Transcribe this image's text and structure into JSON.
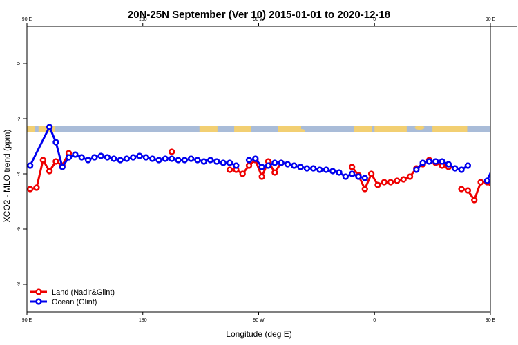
{
  "colors": {
    "land": "#ee0000",
    "ocean": "#0000ee",
    "map_band": "#a9bcd8",
    "continent": "#f2cf72"
  },
  "chart_data": {
    "type": "line",
    "title": "20N-25N September (Ver 10)   2015-01-01 to 2020-12-18",
    "xlabel": "Longitude (deg E)",
    "ylabel": "XCO2 - MLO trend (ppm)",
    "xlim": [
      90,
      450
    ],
    "ylim": [
      -9.0,
      1.35
    ],
    "x_ticks": [
      {
        "value": 90,
        "label": "90 E"
      },
      {
        "value": 180,
        "label": "180"
      },
      {
        "value": 270,
        "label": "90 W"
      },
      {
        "value": 360,
        "label": "0"
      },
      {
        "value": 450,
        "label": "90 E"
      }
    ],
    "x_ticks_top": [
      {
        "value": 90,
        "label": "90 E"
      },
      {
        "value": 180,
        "label": "180"
      },
      {
        "value": 270,
        "label": "90 W"
      },
      {
        "value": 360,
        "label": "0"
      },
      {
        "value": 450,
        "label": "90 E"
      },
      {
        "value": 540,
        "label": "180"
      }
    ],
    "y_ticks": [
      0,
      -2,
      -4,
      -6,
      -8
    ],
    "map_band": {
      "y_top": -2.25,
      "y_bottom": -2.5
    },
    "legend": {
      "position": "bottom-left",
      "entries": [
        "Land (Nadir&Glint)",
        "Ocean (Glint)"
      ]
    },
    "series": [
      {
        "name": "Land (Nadir&Glint)",
        "color": "#ee0000",
        "segments": [
          [
            [
              92.5,
              -4.55
            ],
            [
              97.5,
              -4.5
            ],
            [
              102.5,
              -3.5
            ],
            [
              107.5,
              -3.9
            ],
            [
              112.5,
              -3.55
            ],
            [
              117.5,
              -3.7
            ],
            [
              122.5,
              -3.25
            ]
          ],
          [
            [
              202.5,
              -3.2
            ]
          ],
          [
            [
              247.5,
              -3.85
            ],
            [
              252.5,
              -3.85
            ],
            [
              257.5,
              -4.0
            ],
            [
              262.5,
              -3.7
            ],
            [
              267.5,
              -3.5
            ],
            [
              272.5,
              -4.1
            ],
            [
              277.5,
              -3.55
            ],
            [
              282.5,
              -3.95
            ],
            [
              287.5,
              -3.6
            ]
          ],
          [
            [
              342.5,
              -3.75
            ],
            [
              347.5,
              -4.05
            ],
            [
              352.5,
              -4.55
            ],
            [
              357.5,
              -4.0
            ],
            [
              362.5,
              -4.4
            ],
            [
              367.5,
              -4.3
            ],
            [
              372.5,
              -4.3
            ],
            [
              377.5,
              -4.25
            ],
            [
              382.5,
              -4.2
            ],
            [
              387.5,
              -4.1
            ],
            [
              392.5,
              -3.8
            ],
            [
              397.5,
              -3.65
            ],
            [
              402.5,
              -3.5
            ],
            [
              407.5,
              -3.6
            ],
            [
              412.5,
              -3.7
            ],
            [
              417.5,
              -3.75
            ]
          ],
          [
            [
              427.5,
              -4.55
            ],
            [
              432.5,
              -4.6
            ],
            [
              437.5,
              -4.95
            ],
            [
              442.5,
              -4.3
            ],
            [
              447.5,
              -4.3
            ],
            [
              452.5,
              -4.55
            ],
            [
              457.5,
              -4.5
            ],
            [
              462.5,
              -3.5
            ],
            [
              467.5,
              -3.9
            ],
            [
              472.5,
              -3.55
            ],
            [
              477.5,
              -3.65
            ],
            [
              482.5,
              -3.25
            ]
          ]
        ]
      },
      {
        "name": "Ocean (Glint)",
        "color": "#0000ee",
        "segments": [
          [
            [
              92.5,
              -3.7
            ],
            [
              107.5,
              -2.3
            ],
            [
              112.5,
              -2.85
            ],
            [
              117.5,
              -3.75
            ],
            [
              122.5,
              -3.4
            ],
            [
              127.5,
              -3.3
            ],
            [
              132.5,
              -3.4
            ],
            [
              137.5,
              -3.5
            ],
            [
              142.5,
              -3.4
            ],
            [
              147.5,
              -3.35
            ],
            [
              152.5,
              -3.4
            ],
            [
              157.5,
              -3.45
            ],
            [
              162.5,
              -3.5
            ],
            [
              167.5,
              -3.45
            ],
            [
              172.5,
              -3.4
            ],
            [
              177.5,
              -3.35
            ],
            [
              182.5,
              -3.4
            ],
            [
              187.5,
              -3.45
            ],
            [
              192.5,
              -3.5
            ],
            [
              197.5,
              -3.45
            ],
            [
              202.5,
              -3.45
            ],
            [
              207.5,
              -3.5
            ],
            [
              212.5,
              -3.5
            ],
            [
              217.5,
              -3.45
            ],
            [
              222.5,
              -3.5
            ],
            [
              227.5,
              -3.55
            ],
            [
              232.5,
              -3.5
            ],
            [
              237.5,
              -3.55
            ],
            [
              242.5,
              -3.6
            ],
            [
              247.5,
              -3.6
            ],
            [
              252.5,
              -3.7
            ]
          ],
          [
            [
              262.5,
              -3.5
            ],
            [
              267.5,
              -3.45
            ],
            [
              272.5,
              -3.75
            ],
            [
              277.5,
              -3.7
            ],
            [
              282.5,
              -3.6
            ],
            [
              287.5,
              -3.6
            ],
            [
              292.5,
              -3.65
            ],
            [
              297.5,
              -3.7
            ],
            [
              302.5,
              -3.75
            ],
            [
              307.5,
              -3.8
            ],
            [
              312.5,
              -3.8
            ],
            [
              317.5,
              -3.85
            ],
            [
              322.5,
              -3.85
            ],
            [
              327.5,
              -3.9
            ],
            [
              332.5,
              -3.95
            ],
            [
              337.5,
              -4.1
            ],
            [
              342.5,
              -4.0
            ],
            [
              347.5,
              -4.1
            ],
            [
              352.5,
              -4.15
            ]
          ],
          [
            [
              392.5,
              -3.85
            ],
            [
              397.5,
              -3.6
            ],
            [
              402.5,
              -3.55
            ],
            [
              407.5,
              -3.55
            ],
            [
              412.5,
              -3.55
            ],
            [
              417.5,
              -3.65
            ],
            [
              422.5,
              -3.8
            ],
            [
              427.5,
              -3.85
            ],
            [
              432.5,
              -3.7
            ]
          ],
          [
            [
              447.5,
              -4.25
            ],
            [
              452.5,
              -3.7
            ]
          ],
          [
            [
              472.5,
              -2.3
            ],
            [
              477.5,
              -2.8
            ],
            [
              482.5,
              -3.75
            ],
            [
              487.5,
              -3.35
            ],
            [
              492.5,
              -3.25
            ],
            [
              497.5,
              -3.35
            ],
            [
              502.5,
              -3.45
            ],
            [
              507.5,
              -3.4
            ],
            [
              512.5,
              -3.3
            ],
            [
              517.5,
              -3.35
            ],
            [
              522.5,
              -3.4
            ],
            [
              527.5,
              -3.45
            ],
            [
              532.5,
              -3.5
            ],
            [
              537.5,
              -3.45
            ],
            [
              542.5,
              -3.4
            ]
          ]
        ]
      }
    ]
  }
}
